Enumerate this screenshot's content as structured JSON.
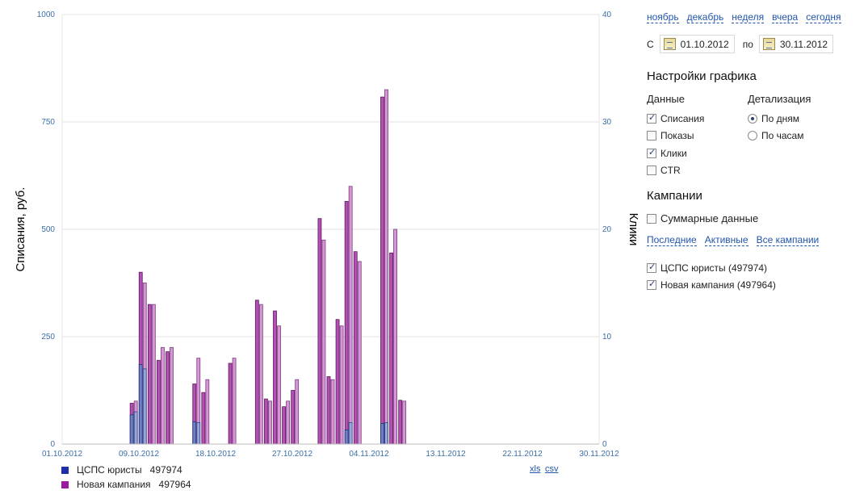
{
  "chart_data": {
    "type": "bar",
    "stacked": true,
    "ylabel_left": "Списания,  руб.",
    "ylabel_right": "Клики",
    "ylim_left": [
      0,
      1000
    ],
    "ylim_right": [
      0,
      40
    ],
    "left_ticks": [
      "0",
      "250",
      "500",
      "750",
      "1000"
    ],
    "right_ticks": [
      "0",
      "10",
      "20",
      "30",
      "40"
    ],
    "x_ticks": [
      "01.10.2012",
      "09.10.2012",
      "18.10.2012",
      "27.10.2012",
      "04.11.2012",
      "13.11.2012",
      "22.11.2012",
      "30.11.2012"
    ],
    "x_range_days": 60,
    "grid": true,
    "bars": [
      {
        "day": 8,
        "spend_total": 95,
        "spend_a": 68,
        "clicks_total": 4,
        "clicks_a": 3
      },
      {
        "day": 9,
        "spend_total": 400,
        "spend_a": 185,
        "clicks_total": 15,
        "clicks_a": 7
      },
      {
        "day": 10,
        "spend_total": 325,
        "spend_a": 0,
        "clicks_total": 13,
        "clicks_a": 0
      },
      {
        "day": 11,
        "spend_total": 195,
        "spend_a": 0,
        "clicks_total": 9,
        "clicks_a": 0
      },
      {
        "day": 12,
        "spend_total": 215,
        "spend_a": 0,
        "clicks_total": 9,
        "clicks_a": 0
      },
      {
        "day": 15,
        "spend_total": 140,
        "spend_a": 52,
        "clicks_total": 8,
        "clicks_a": 2
      },
      {
        "day": 16,
        "spend_total": 120,
        "spend_a": 0,
        "clicks_total": 6,
        "clicks_a": 0
      },
      {
        "day": 19,
        "spend_total": 188,
        "spend_a": 0,
        "clicks_total": 8,
        "clicks_a": 0
      },
      {
        "day": 22,
        "spend_total": 335,
        "spend_a": 0,
        "clicks_total": 13,
        "clicks_a": 0
      },
      {
        "day": 23,
        "spend_total": 105,
        "spend_a": 0,
        "clicks_total": 4,
        "clicks_a": 0
      },
      {
        "day": 24,
        "spend_total": 310,
        "spend_a": 0,
        "clicks_total": 11,
        "clicks_a": 0
      },
      {
        "day": 25,
        "spend_total": 87,
        "spend_a": 0,
        "clicks_total": 4,
        "clicks_a": 0
      },
      {
        "day": 26,
        "spend_total": 125,
        "spend_a": 0,
        "clicks_total": 6,
        "clicks_a": 0
      },
      {
        "day": 29,
        "spend_total": 525,
        "spend_a": 0,
        "clicks_total": 19,
        "clicks_a": 0
      },
      {
        "day": 30,
        "spend_total": 157,
        "spend_a": 0,
        "clicks_total": 6,
        "clicks_a": 0
      },
      {
        "day": 31,
        "spend_total": 290,
        "spend_a": 0,
        "clicks_total": 11,
        "clicks_a": 0
      },
      {
        "day": 32,
        "spend_total": 565,
        "spend_a": 33,
        "clicks_total": 24,
        "clicks_a": 2
      },
      {
        "day": 33,
        "spend_total": 448,
        "spend_a": 0,
        "clicks_total": 17,
        "clicks_a": 0
      },
      {
        "day": 36,
        "spend_total": 808,
        "spend_a": 48,
        "clicks_total": 33,
        "clicks_a": 2
      },
      {
        "day": 37,
        "spend_total": 445,
        "spend_a": 0,
        "clicks_total": 20,
        "clicks_a": 0
      },
      {
        "day": 38,
        "spend_total": 102,
        "spend_a": 0,
        "clicks_total": 4,
        "clicks_a": 0
      }
    ],
    "series": [
      {
        "name": "ЦСПС юристы",
        "id": "497974",
        "color": "#1f2fa8"
      },
      {
        "name": "Новая кампания",
        "id": "497964",
        "color": "#9a1aa0"
      }
    ]
  },
  "legend": [
    {
      "name": "ЦСПС юристы",
      "id": "497974",
      "color": "#1f2fa8"
    },
    {
      "name": "Новая кампания",
      "id": "497964",
      "color": "#9a1aa0"
    }
  ],
  "export": {
    "xls": "xls",
    "csv": "csv"
  },
  "periods": [
    "ноябрь",
    "декабрь",
    "неделя",
    "вчера",
    "сегодня"
  ],
  "dates": {
    "from_label": "С",
    "from": "01.10.2012",
    "to_label": "по",
    "to": "30.11.2012"
  },
  "settings": {
    "title": "Настройки графика",
    "data_header": "Данные",
    "data_options": [
      {
        "label": "Списания",
        "checked": true
      },
      {
        "label": "Показы",
        "checked": false
      },
      {
        "label": "Клики",
        "checked": true
      },
      {
        "label": "CTR",
        "checked": false
      }
    ],
    "detail_header": "Детализация",
    "detail_options": [
      {
        "label": "По дням",
        "selected": true
      },
      {
        "label": "По часам",
        "selected": false
      }
    ]
  },
  "campaigns": {
    "title": "Кампании",
    "summary_label": "Суммарные данные",
    "links": [
      "Последние",
      "Активные",
      "Все кампании"
    ],
    "items": [
      {
        "label": "ЦСПС юристы (497974)",
        "checked": true
      },
      {
        "label": "Новая кампания (497964)",
        "checked": true
      }
    ]
  }
}
